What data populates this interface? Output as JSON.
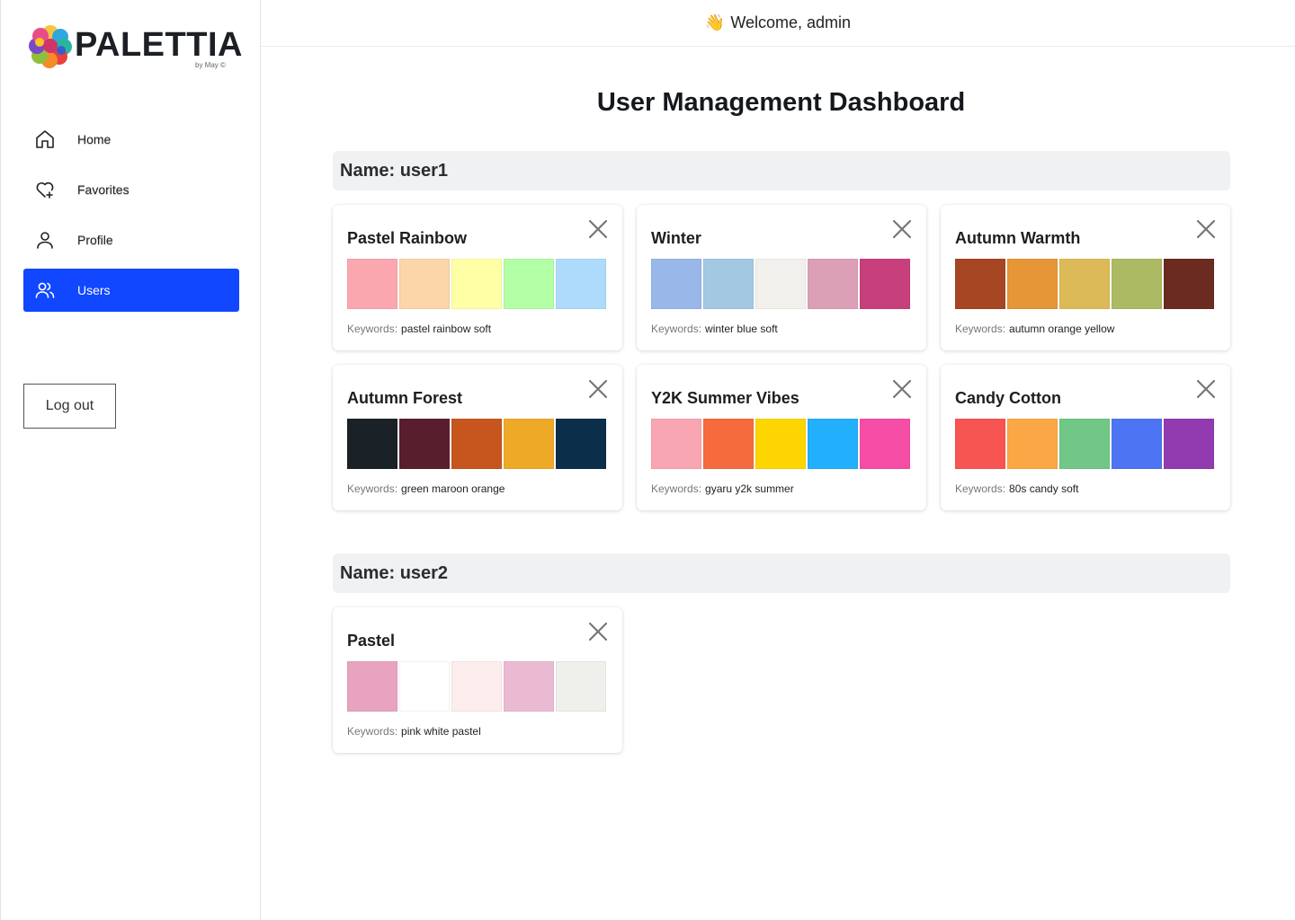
{
  "app": {
    "logo_text": "PALETTIA",
    "logo_sub": "by May ©"
  },
  "sidebar": {
    "items": [
      {
        "label": "Home",
        "icon": "home-icon"
      },
      {
        "label": "Favorites",
        "icon": "heart-plus-icon"
      },
      {
        "label": "Profile",
        "icon": "user-icon"
      },
      {
        "label": "Users",
        "icon": "users-icon",
        "active": true
      }
    ],
    "logout_label": "Log out"
  },
  "header": {
    "welcome": "Welcome, admin",
    "emoji": "👋"
  },
  "main": {
    "title": "User Management Dashboard",
    "keywords_label": "Keywords:",
    "users": [
      {
        "name_label": "Name: user1",
        "palettes": [
          {
            "title": "Pastel Rainbow",
            "keywords": "pastel rainbow soft",
            "colors": [
              "#FBA7B0",
              "#FCD5A8",
              "#FFFFA6",
              "#B2FFA6",
              "#AEDAFB"
            ]
          },
          {
            "title": "Winter",
            "keywords": "winter blue soft",
            "colors": [
              "#9AB7E9",
              "#A3C8E2",
              "#F1F0EC",
              "#DCA0B6",
              "#C8407B"
            ]
          },
          {
            "title": "Autumn Warmth",
            "keywords": "autumn orange yellow",
            "colors": [
              "#A64623",
              "#E69636",
              "#DDBA58",
              "#ACBB63",
              "#6B2B20"
            ]
          },
          {
            "title": "Autumn Forest",
            "keywords": "green maroon orange",
            "colors": [
              "#1A2228",
              "#591E2E",
              "#C7561E",
              "#EEAA27",
              "#0B2E4B"
            ]
          },
          {
            "title": "Y2K Summer Vibes",
            "keywords": "gyaru y2k summer",
            "colors": [
              "#F8A6B1",
              "#F66B3D",
              "#FDD500",
              "#22AFFB",
              "#F64DA6"
            ]
          },
          {
            "title": "Candy Cotton",
            "keywords": "80s candy soft",
            "colors": [
              "#F75552",
              "#FCA745",
              "#70C786",
              "#4D75F3",
              "#923AAF"
            ]
          }
        ]
      },
      {
        "name_label": "Name: user2",
        "palettes": [
          {
            "title": "Pastel",
            "keywords": "pink white pastel",
            "colors": [
              "#E8A3BF",
              "#FFFFFF",
              "#FDEDED",
              "#EABAD3",
              "#EFEFEC"
            ]
          }
        ]
      }
    ]
  }
}
